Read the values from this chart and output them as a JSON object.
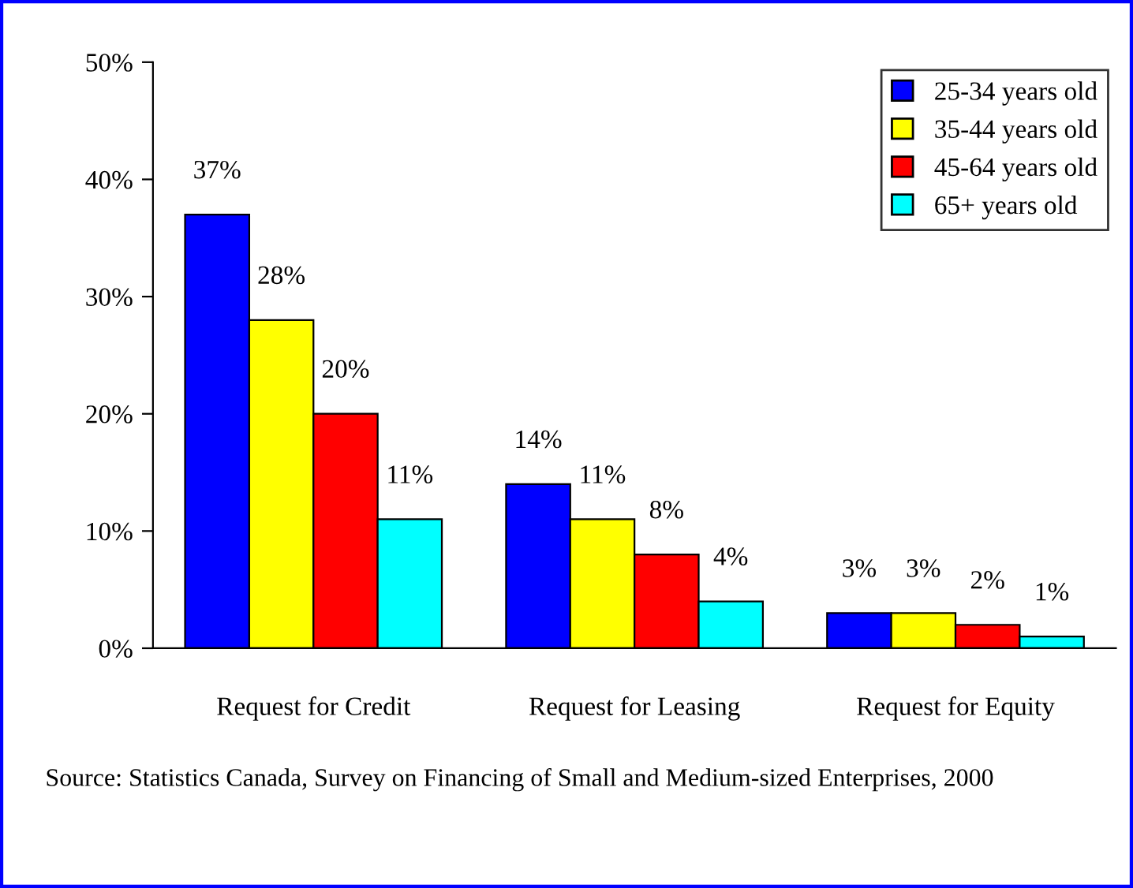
{
  "chart_data": {
    "type": "bar",
    "categories": [
      "Request for Credit",
      "Request for Leasing",
      "Request for Equity"
    ],
    "series": [
      {
        "name": "25-34 years old",
        "color": "#0000ff",
        "values": [
          37,
          14,
          3
        ],
        "value_labels": [
          "37%",
          "14%",
          "3%"
        ]
      },
      {
        "name": "35-44 years old",
        "color": "#ffff00",
        "values": [
          28,
          11,
          3
        ],
        "value_labels": [
          "28%",
          "11%",
          "3%"
        ]
      },
      {
        "name": "45-64 years old",
        "color": "#ff0000",
        "values": [
          20,
          8,
          2
        ],
        "value_labels": [
          "20%",
          "8%",
          "2%"
        ]
      },
      {
        "name": "65+ years old",
        "color": "#00ffff",
        "values": [
          11,
          4,
          1
        ],
        "value_labels": [
          "11%",
          "4%",
          "1%"
        ]
      }
    ],
    "ylim": [
      0,
      50
    ],
    "yticks": [
      {
        "value": 0,
        "label": "0%"
      },
      {
        "value": 10,
        "label": "10%"
      },
      {
        "value": 20,
        "label": "20%"
      },
      {
        "value": 30,
        "label": "30%"
      },
      {
        "value": 40,
        "label": "40%"
      },
      {
        "value": 50,
        "label": "50%"
      }
    ],
    "grid": false,
    "legend": "top right",
    "annotations": [
      "Source: Statistics Canada, Survey on Financing of Small and Medium-sized Enterprises, 2000"
    ]
  }
}
